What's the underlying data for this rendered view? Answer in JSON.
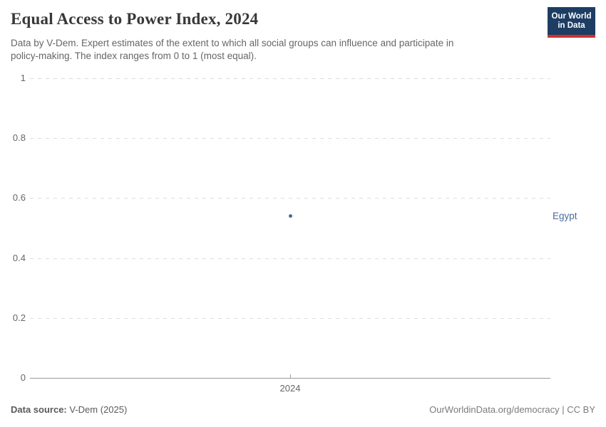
{
  "header": {
    "title": "Equal Access to Power Index, 2024",
    "subtitle_line1": "Data by V-Dem. Expert estimates of the extent to which all social groups can influence and participate in",
    "subtitle_line2": "policy-making. The index ranges from 0 to 1 (most equal).",
    "logo": {
      "line1": "Our World",
      "line2": "in Data",
      "bg_color": "#1d3d63",
      "bar_color": "#cc342f"
    }
  },
  "chart_data": {
    "type": "scatter",
    "title": "Equal Access to Power Index, 2024",
    "x": [
      2024
    ],
    "x_tick_labels": [
      "2024"
    ],
    "y_ticks": [
      0,
      0.2,
      0.4,
      0.6,
      0.8,
      1
    ],
    "ylim": [
      0,
      1
    ],
    "xlabel": "",
    "ylabel": "",
    "grid": "horizontal-dashed",
    "legend_position": "right-inline",
    "series": [
      {
        "name": "Egypt",
        "color": "#4c6a9c",
        "points": [
          {
            "x": 2024,
            "y": 0.54
          }
        ]
      }
    ]
  },
  "footer": {
    "source_label": "Data source:",
    "source_value": "V-Dem (2025)",
    "right_text": "OurWorldinData.org/democracy | CC BY"
  }
}
